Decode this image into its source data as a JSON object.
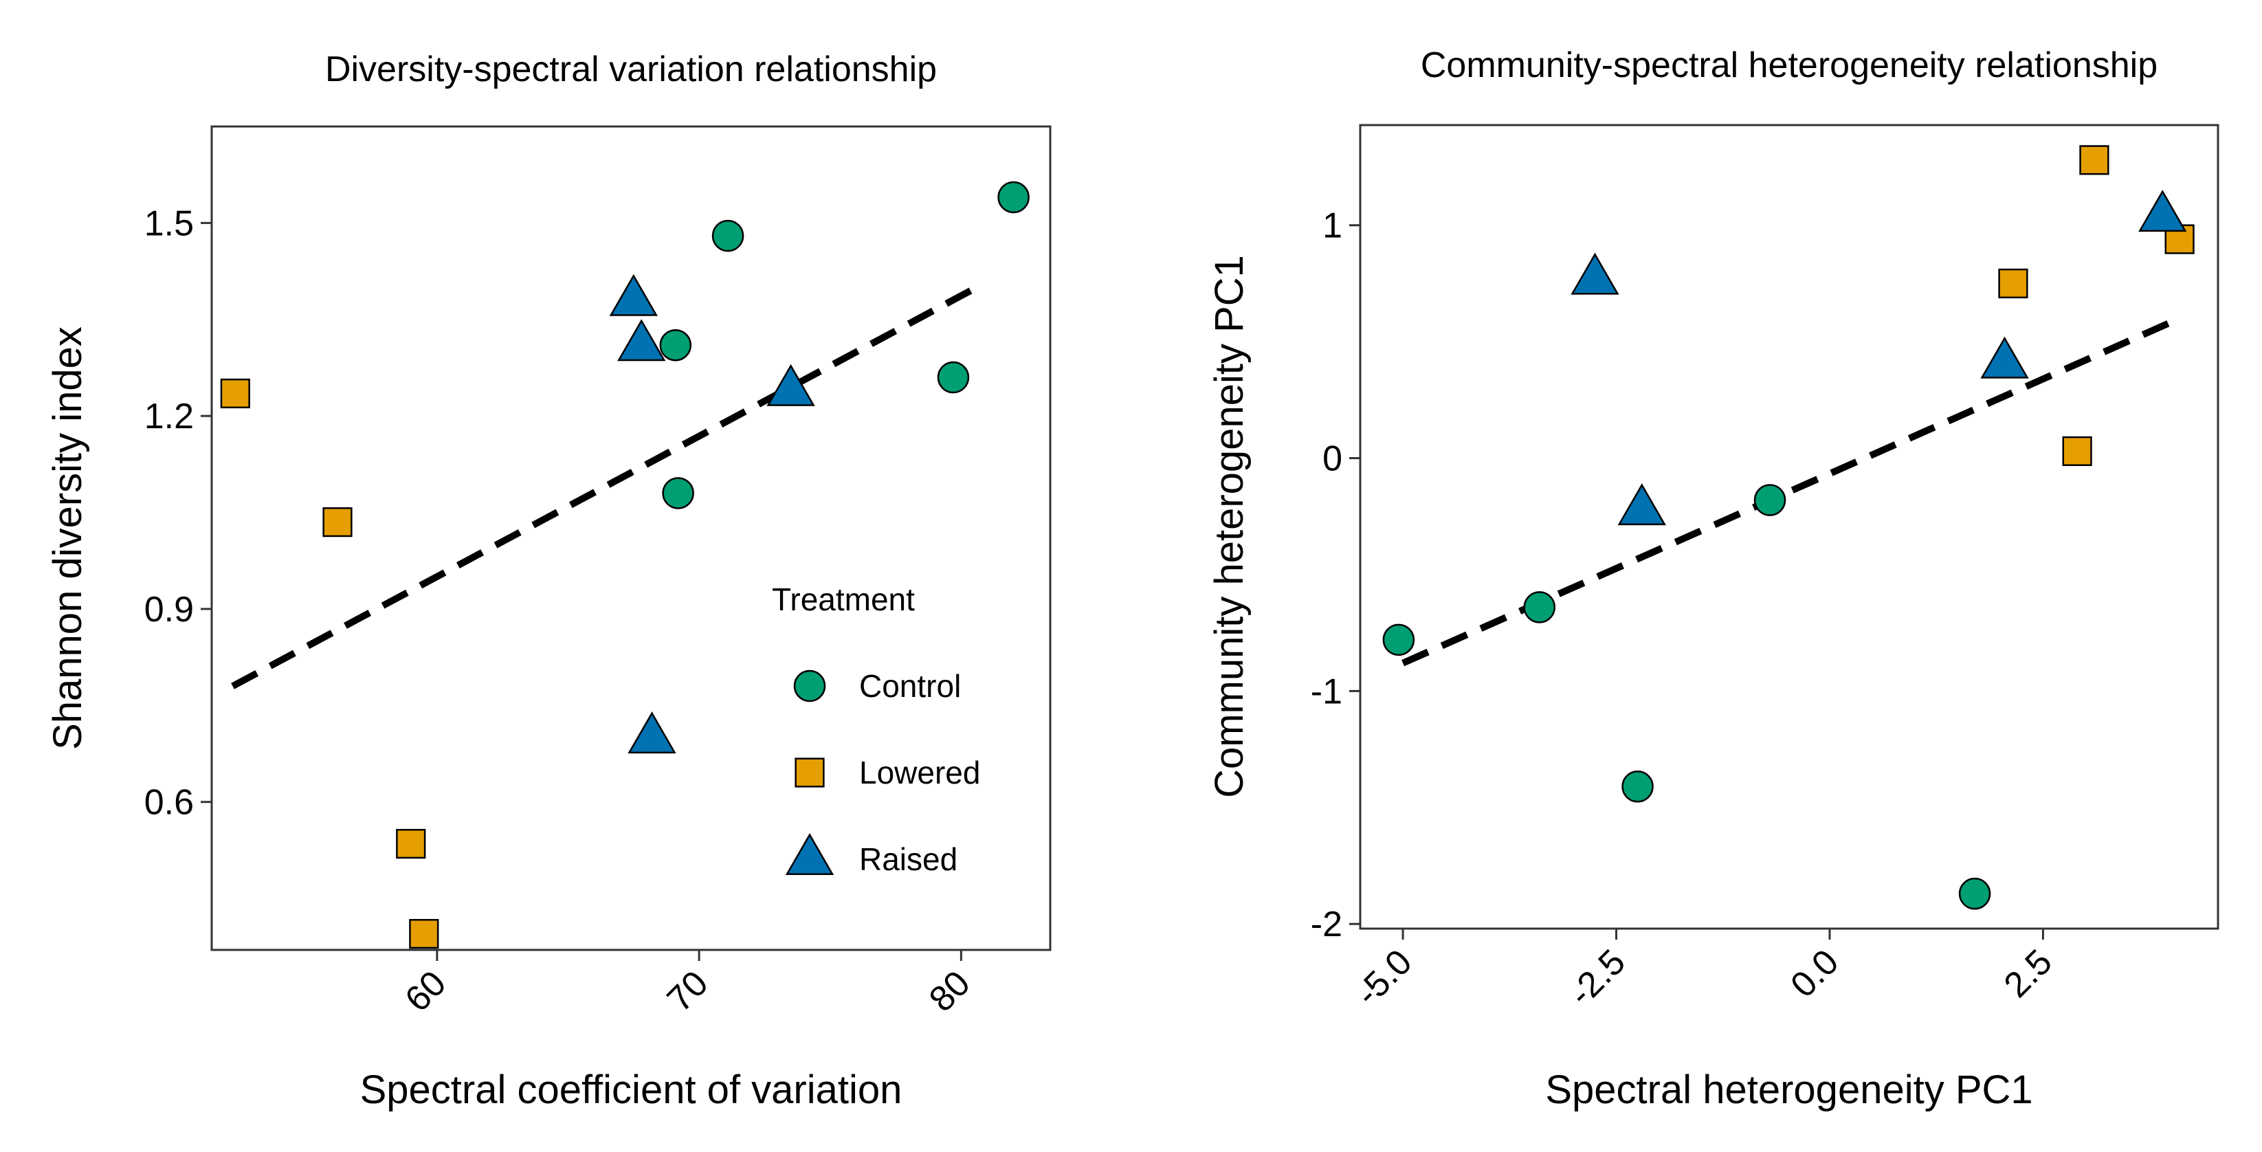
{
  "chart_data": [
    {
      "type": "scatter",
      "title": "Diversity-spectral variation relationship",
      "xlabel": "Spectral coefficient of variation",
      "ylabel": "Shannon diversity index",
      "xlim": [
        51.4,
        83.4
      ],
      "ylim": [
        0.37,
        1.65
      ],
      "xticks": [
        60,
        70,
        80
      ],
      "xtick_labels": [
        "60",
        "70",
        "80"
      ],
      "yticks": [
        0.6,
        0.9,
        1.2,
        1.5
      ],
      "ytick_labels": [
        "0.6",
        "0.9",
        "1.2",
        "1.5"
      ],
      "x_tick_rotation": -45,
      "trend_line": {
        "style": "dashed",
        "x": [
          52.2,
          80.6
        ],
        "y": [
          0.78,
          1.4
        ]
      },
      "series": [
        {
          "name": "Control",
          "marker": "circle",
          "color": "#009E73",
          "points": [
            [
              71.1,
              1.48
            ],
            [
              82,
              1.54
            ],
            [
              69.1,
              1.31
            ],
            [
              79.7,
              1.26
            ],
            [
              69.2,
              1.08
            ]
          ]
        },
        {
          "name": "Lowered",
          "marker": "square",
          "color": "#E69F00",
          "points": [
            [
              52.3,
              1.235
            ],
            [
              56.2,
              1.035
            ],
            [
              59,
              0.535
            ],
            [
              59.5,
              0.395
            ]
          ]
        },
        {
          "name": "Raised",
          "marker": "triangle",
          "color": "#0072B2",
          "points": [
            [
              67.5,
              1.38
            ],
            [
              67.8,
              1.31
            ],
            [
              73.5,
              1.24
            ],
            [
              68.2,
              0.7
            ]
          ]
        }
      ],
      "legend": {
        "title": "Treatment",
        "position": "inside-bottom-right",
        "entries": [
          "Control",
          "Lowered",
          "Raised"
        ]
      }
    },
    {
      "type": "scatter",
      "title": "Community-spectral heterogeneity relationship",
      "xlabel": "Spectral heterogeneity PC1",
      "ylabel": "Community heterogeneity PC1",
      "xlim": [
        -5.5,
        4.55
      ],
      "ylim": [
        -2.02,
        1.43
      ],
      "xticks": [
        -5,
        -2.5,
        0,
        2.5
      ],
      "xtick_labels": [
        "-5.0",
        "-2.5",
        "0.0",
        "2.5"
      ],
      "yticks": [
        -2,
        -1,
        0,
        1
      ],
      "ytick_labels": [
        "-2",
        "-1",
        "0",
        "1"
      ],
      "x_tick_rotation": -45,
      "trend_line": {
        "style": "dashed",
        "x": [
          -5,
          4.1
        ],
        "y": [
          -0.88,
          0.6
        ]
      },
      "series": [
        {
          "name": "Control",
          "marker": "circle",
          "color": "#009E73",
          "points": [
            [
              -5.05,
              -0.78
            ],
            [
              -3.4,
              -0.64
            ],
            [
              -0.7,
              -0.18
            ],
            [
              -2.25,
              -1.41
            ],
            [
              1.7,
              -1.87
            ]
          ]
        },
        {
          "name": "Lowered",
          "marker": "square",
          "color": "#E69F00",
          "points": [
            [
              3.1,
              1.28
            ],
            [
              4.1,
              0.94
            ],
            [
              2.15,
              0.75
            ],
            [
              2.9,
              0.03
            ]
          ]
        },
        {
          "name": "Raised",
          "marker": "triangle",
          "color": "#0072B2",
          "points": [
            [
              -2.75,
              0.77
            ],
            [
              3.9,
              1.04
            ],
            [
              2.05,
              0.41
            ],
            [
              -2.2,
              -0.22
            ]
          ]
        }
      ]
    }
  ]
}
